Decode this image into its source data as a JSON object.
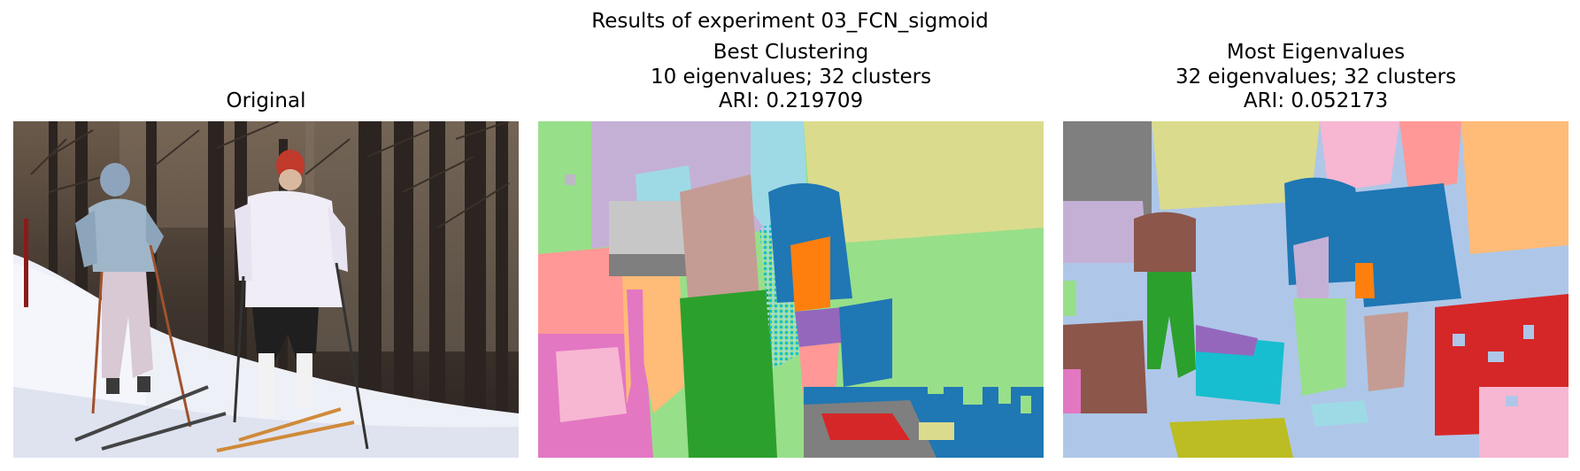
{
  "figure": {
    "suptitle": "Results of experiment 03_FCN_sigmoid"
  },
  "panels": [
    {
      "id": "original",
      "title_lines": [
        "Original"
      ],
      "image": "photo of two skiers in a snowy forest"
    },
    {
      "id": "best",
      "title_lines": [
        "Best Clustering",
        "10 eigenvalues; 32 clusters",
        "ARI: 0.219709"
      ]
    },
    {
      "id": "most",
      "title_lines": [
        "Most Eigenvalues",
        "32 eigenvalues; 32 clusters",
        "ARI: 0.052173"
      ]
    }
  ],
  "palette": {
    "snow": "#eef0f8",
    "forest": "#4a3f36",
    "seg_bg": "#aec7e8",
    "lavender": "#c5b0d5",
    "light_green": "#98df8a",
    "olive_light": "#dbdb8d",
    "cyan": "#17becf",
    "light_cyan": "#9edae5",
    "blue": "#1f77b4",
    "orange": "#ff7f0e",
    "light_orange": "#ffbb78",
    "green": "#2ca02c",
    "red": "#d62728",
    "pink_red": "#ff9896",
    "purple": "#9467bd",
    "brown": "#8c564b",
    "tan": "#c49c94",
    "pink": "#e377c2",
    "light_pink": "#f7b6d2",
    "gray": "#7f7f7f",
    "olive": "#bcbd22"
  }
}
